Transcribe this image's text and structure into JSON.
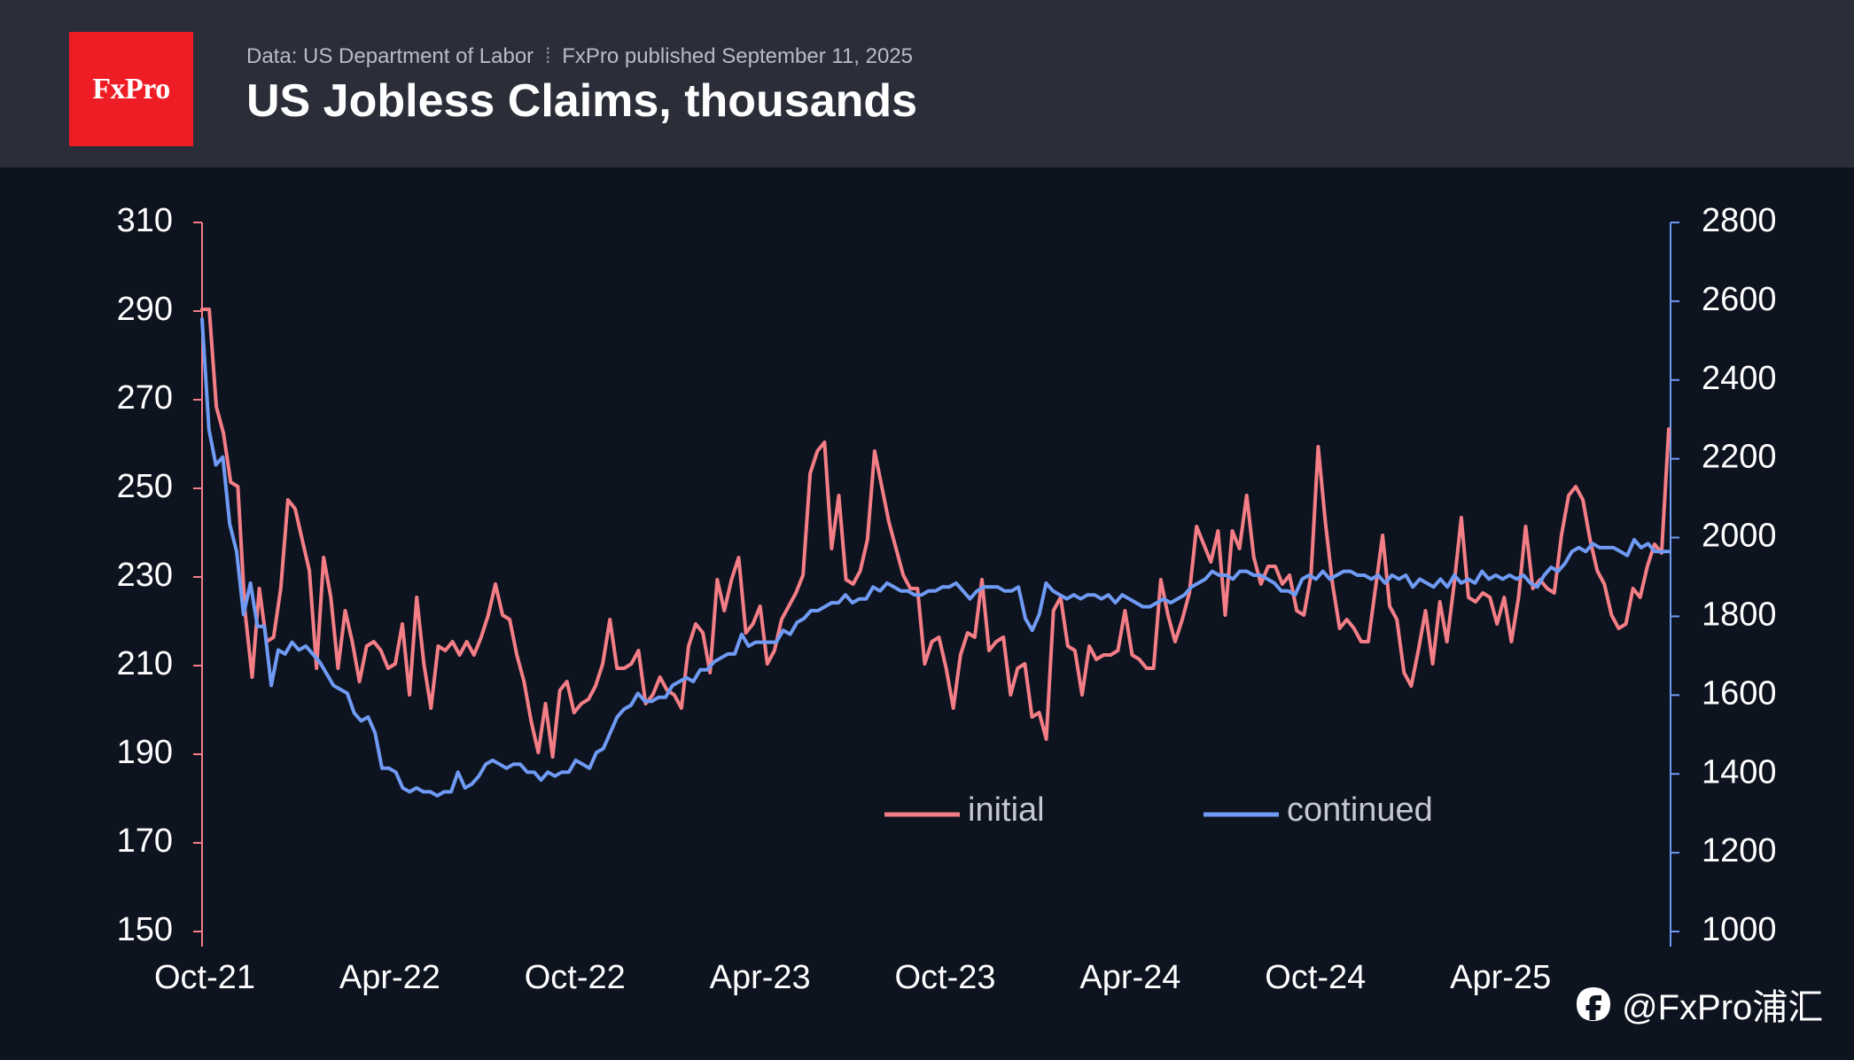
{
  "header": {
    "logo_text": "FxPro",
    "source": "Data: US Department of Labor",
    "separator": "⁞",
    "published": "FxPro published September 11, 2025",
    "title": "US Jobless Claims, thousands"
  },
  "watermark": {
    "icon": "social-logo-icon",
    "text": "@FxPro浦汇"
  },
  "chart_data": {
    "type": "line",
    "x_ticks": [
      "Oct-21",
      "Apr-22",
      "Oct-22",
      "Apr-23",
      "Oct-23",
      "Apr-24",
      "Oct-24",
      "Apr-25"
    ],
    "y_left": {
      "ticks": [
        "310",
        "290",
        "270",
        "250",
        "230",
        "210",
        "190",
        "170",
        "150"
      ],
      "ylim": [
        150,
        310
      ],
      "color": "#f47e86"
    },
    "y_right": {
      "ticks": [
        "2800",
        "2600",
        "2400",
        "2200",
        "2000",
        "1800",
        "1600",
        "1400",
        "1200",
        "1000"
      ],
      "ylim": [
        1000,
        2800
      ],
      "color": "#6f9bf4"
    },
    "x_range_weeks": [
      0,
      206
    ],
    "series": [
      {
        "name": "initial",
        "axis": "left",
        "color": "#f47e86",
        "values": [
          290,
          290,
          268,
          262,
          251,
          250,
          222,
          207,
          227,
          215,
          216,
          227,
          247,
          245,
          238,
          231,
          209,
          234,
          225,
          209,
          222,
          215,
          206,
          214,
          215,
          213,
          209,
          210,
          219,
          203,
          225,
          210,
          200,
          214,
          213,
          215,
          212,
          215,
          212,
          216,
          221,
          228,
          221,
          220,
          212,
          206,
          197,
          190,
          201,
          189,
          204,
          206,
          199,
          201,
          202,
          205,
          210,
          220,
          209,
          209,
          210,
          213,
          201,
          203,
          207,
          204,
          203,
          200,
          214,
          219,
          217,
          208,
          229,
          222,
          229,
          234,
          217,
          219,
          223,
          210,
          213,
          220,
          223,
          226,
          230,
          253,
          258,
          260,
          236,
          248,
          229,
          228,
          231,
          238,
          258,
          250,
          242,
          236,
          230,
          227,
          227,
          210,
          215,
          216,
          209,
          200,
          212,
          217,
          216,
          229,
          213,
          215,
          216,
          203,
          209,
          210,
          198,
          199,
          193,
          222,
          225,
          214,
          213,
          203,
          214,
          211,
          212,
          212,
          213,
          222,
          212,
          211,
          209,
          209,
          229,
          221,
          215,
          220,
          226,
          241,
          237,
          233,
          240,
          221,
          240,
          236,
          248,
          234,
          228,
          232,
          232,
          228,
          230,
          222,
          221,
          230,
          259,
          242,
          228,
          218,
          220,
          218,
          215,
          215,
          227,
          239,
          223,
          220,
          208,
          205,
          213,
          222,
          210,
          224,
          215,
          228,
          243,
          225,
          224,
          226,
          225,
          219,
          225,
          215,
          225,
          241,
          227,
          229,
          227,
          226,
          239,
          248,
          250,
          247,
          238,
          231,
          228,
          221,
          218,
          219,
          227,
          225,
          232,
          237,
          235,
          263
        ]
      },
      {
        "name": "continued",
        "axis": "right",
        "color": "#6f9bf4",
        "values": [
          2550,
          2270,
          2180,
          2200,
          2030,
          1960,
          1800,
          1880,
          1770,
          1770,
          1620,
          1710,
          1700,
          1730,
          1710,
          1720,
          1700,
          1680,
          1650,
          1620,
          1610,
          1600,
          1550,
          1530,
          1540,
          1500,
          1410,
          1410,
          1400,
          1360,
          1350,
          1360,
          1350,
          1350,
          1340,
          1350,
          1350,
          1400,
          1360,
          1370,
          1390,
          1420,
          1430,
          1420,
          1410,
          1420,
          1420,
          1400,
          1400,
          1380,
          1400,
          1390,
          1400,
          1400,
          1430,
          1420,
          1410,
          1450,
          1460,
          1500,
          1540,
          1560,
          1570,
          1600,
          1580,
          1580,
          1590,
          1590,
          1620,
          1630,
          1640,
          1630,
          1660,
          1660,
          1680,
          1690,
          1700,
          1700,
          1750,
          1720,
          1730,
          1730,
          1730,
          1730,
          1760,
          1750,
          1780,
          1790,
          1810,
          1810,
          1820,
          1830,
          1830,
          1850,
          1830,
          1840,
          1840,
          1870,
          1860,
          1880,
          1870,
          1860,
          1860,
          1850,
          1850,
          1860,
          1860,
          1870,
          1870,
          1880,
          1860,
          1840,
          1860,
          1870,
          1870,
          1870,
          1860,
          1860,
          1870,
          1790,
          1760,
          1800,
          1880,
          1860,
          1850,
          1840,
          1850,
          1840,
          1850,
          1850,
          1840,
          1850,
          1830,
          1850,
          1840,
          1830,
          1820,
          1820,
          1830,
          1840,
          1830,
          1840,
          1850,
          1870,
          1880,
          1890,
          1910,
          1900,
          1900,
          1890,
          1910,
          1910,
          1900,
          1900,
          1890,
          1880,
          1860,
          1860,
          1850,
          1890,
          1900,
          1890,
          1910,
          1890,
          1900,
          1910,
          1910,
          1900,
          1900,
          1890,
          1900,
          1880,
          1900,
          1890,
          1900,
          1870,
          1890,
          1880,
          1870,
          1890,
          1870,
          1900,
          1880,
          1890,
          1880,
          1910,
          1890,
          1900,
          1890,
          1900,
          1890,
          1900,
          1880,
          1870,
          1900,
          1920,
          1910,
          1930,
          1960,
          1970,
          1960,
          1980,
          1970,
          1970,
          1970,
          1960,
          1950,
          1990,
          1970,
          1980,
          1960,
          1960,
          1960
        ]
      }
    ]
  }
}
